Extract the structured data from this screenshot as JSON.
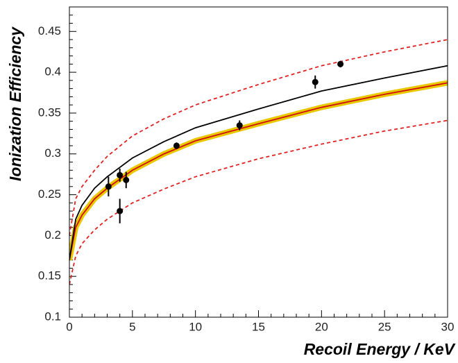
{
  "chart_data": {
    "type": "scatter",
    "xlabel": "Recoil Energy / KeV",
    "ylabel": "Ionization Efficiency",
    "xlim": [
      0,
      30
    ],
    "ylim": [
      0.1,
      0.48
    ],
    "xticks": [
      0,
      5,
      10,
      15,
      20,
      25,
      30
    ],
    "yticks": [
      0.1,
      0.15,
      0.2,
      0.25,
      0.3,
      0.35,
      0.4,
      0.45
    ],
    "line_x": [
      0,
      0.5,
      1,
      2,
      3,
      5,
      7.5,
      10,
      15,
      20,
      25,
      30
    ],
    "lines": [
      {
        "color": "#e8c800",
        "band": true,
        "values": [
          0.17,
          0.21,
          0.225,
          0.245,
          0.258,
          0.28,
          0.3,
          0.316,
          0.337,
          0.357,
          0.373,
          0.387
        ]
      },
      {
        "color": "#d01010",
        "values": [
          0.17,
          0.21,
          0.225,
          0.245,
          0.258,
          0.28,
          0.3,
          0.316,
          0.337,
          0.357,
          0.373,
          0.387
        ]
      },
      {
        "color": "#000000",
        "values": [
          0.17,
          0.22,
          0.237,
          0.258,
          0.272,
          0.295,
          0.315,
          0.332,
          0.355,
          0.377,
          0.393,
          0.408
        ]
      },
      {
        "color": "#e02020",
        "dashed": true,
        "values": [
          0.2,
          0.245,
          0.26,
          0.28,
          0.297,
          0.322,
          0.343,
          0.36,
          0.385,
          0.408,
          0.425,
          0.44
        ]
      },
      {
        "color": "#e02020",
        "dashed": true,
        "values": [
          0.14,
          0.175,
          0.19,
          0.207,
          0.22,
          0.24,
          0.257,
          0.272,
          0.294,
          0.312,
          0.328,
          0.341
        ]
      }
    ],
    "points": {
      "color": "#000000",
      "x": [
        3.1,
        4.0,
        4.0,
        4.5,
        8.5,
        13.5,
        19.5,
        21.5
      ],
      "values": [
        0.26,
        0.274,
        0.23,
        0.268,
        0.31,
        0.335,
        0.388,
        0.41
      ],
      "errors": [
        0.012,
        0.008,
        0.015,
        0.01,
        0.004,
        0.006,
        0.008,
        0.004
      ]
    }
  }
}
